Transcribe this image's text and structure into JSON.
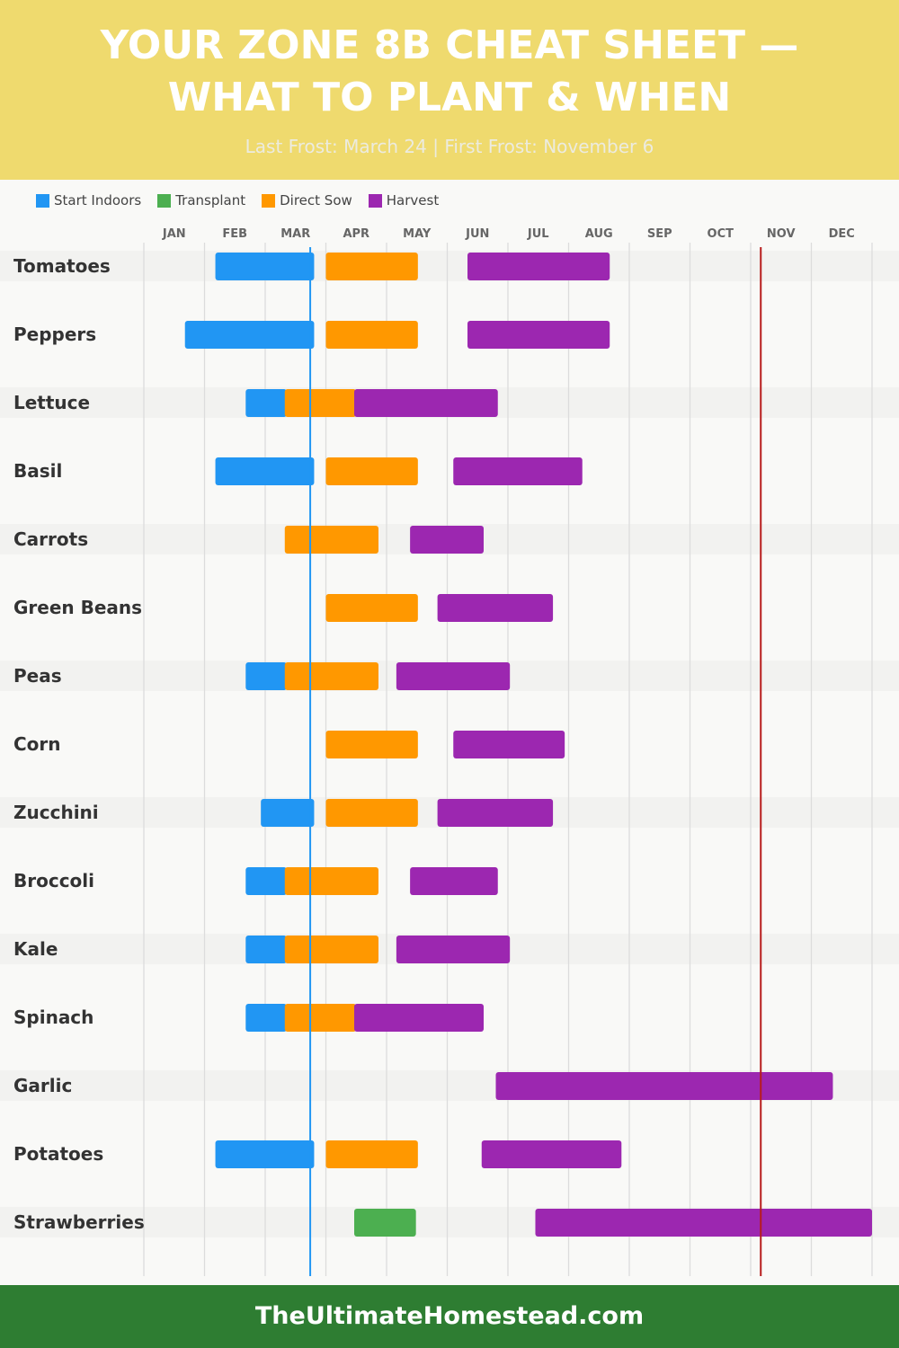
{
  "header": {
    "title_line1": "YOUR ZONE 8B CHEAT SHEET —",
    "title_line2": "WHAT TO PLANT & WHEN",
    "subtitle": "Last Frost: March 24 | First Frost: November 6"
  },
  "footer": {
    "text": "TheUltimateHomestead.com"
  },
  "chart_data": {
    "type": "gantt",
    "legend": [
      {
        "name": "Start Indoors",
        "color": "#2196f3"
      },
      {
        "name": "Transplant",
        "color": "#4caf50"
      },
      {
        "name": "Direct Sow",
        "color": "#ff9800"
      },
      {
        "name": "Harvest",
        "color": "#9c27b0"
      }
    ],
    "months": [
      "JAN",
      "FEB",
      "MAR",
      "APR",
      "MAY",
      "JUN",
      "JUL",
      "AUG",
      "SEP",
      "OCT",
      "NOV",
      "DEC"
    ],
    "frost_lines": [
      {
        "label": "Last Frost",
        "date": "03-24",
        "color": "#2196f3"
      },
      {
        "label": "First Frost",
        "date": "11-06",
        "color": "#b71c1c"
      }
    ],
    "crops": [
      {
        "name": "Tomatoes",
        "tasks": [
          [
            "Start Indoors",
            "02-06",
            "03-25"
          ],
          [
            "Direct Sow",
            "04-01",
            "05-16"
          ],
          [
            "Harvest",
            "06-11",
            "08-21"
          ]
        ]
      },
      {
        "name": "Peppers",
        "tasks": [
          [
            "Start Indoors",
            "01-22",
            "03-25"
          ],
          [
            "Direct Sow",
            "04-01",
            "05-16"
          ],
          [
            "Harvest",
            "06-11",
            "08-21"
          ]
        ]
      },
      {
        "name": "Lettuce",
        "tasks": [
          [
            "Start Indoors",
            "02-20",
            "03-11"
          ],
          [
            "Direct Sow",
            "03-11",
            "04-15"
          ],
          [
            "Harvest",
            "04-15",
            "06-25"
          ]
        ]
      },
      {
        "name": "Basil",
        "tasks": [
          [
            "Start Indoors",
            "02-06",
            "03-25"
          ],
          [
            "Direct Sow",
            "04-01",
            "05-16"
          ],
          [
            "Harvest",
            "06-04",
            "08-07"
          ]
        ]
      },
      {
        "name": "Carrots",
        "tasks": [
          [
            "Direct Sow",
            "03-11",
            "04-26"
          ],
          [
            "Harvest",
            "05-13",
            "06-18"
          ]
        ]
      },
      {
        "name": "Green Beans",
        "tasks": [
          [
            "Direct Sow",
            "04-01",
            "05-16"
          ],
          [
            "Harvest",
            "05-27",
            "07-23"
          ]
        ]
      },
      {
        "name": "Peas",
        "tasks": [
          [
            "Start Indoors",
            "02-20",
            "03-11"
          ],
          [
            "Direct Sow",
            "03-11",
            "04-26"
          ],
          [
            "Harvest",
            "05-06",
            "07-01"
          ]
        ]
      },
      {
        "name": "Corn",
        "tasks": [
          [
            "Direct Sow",
            "04-01",
            "05-16"
          ],
          [
            "Harvest",
            "06-04",
            "07-29"
          ]
        ]
      },
      {
        "name": "Zucchini",
        "tasks": [
          [
            "Start Indoors",
            "02-27",
            "03-25"
          ],
          [
            "Direct Sow",
            "04-01",
            "05-16"
          ],
          [
            "Harvest",
            "05-27",
            "07-23"
          ]
        ]
      },
      {
        "name": "Broccoli",
        "tasks": [
          [
            "Start Indoors",
            "02-20",
            "03-11"
          ],
          [
            "Direct Sow",
            "03-11",
            "04-26"
          ],
          [
            "Harvest",
            "05-13",
            "06-25"
          ]
        ]
      },
      {
        "name": "Kale",
        "tasks": [
          [
            "Start Indoors",
            "02-20",
            "03-11"
          ],
          [
            "Direct Sow",
            "03-11",
            "04-26"
          ],
          [
            "Harvest",
            "05-06",
            "07-01"
          ]
        ]
      },
      {
        "name": "Spinach",
        "tasks": [
          [
            "Start Indoors",
            "02-20",
            "03-11"
          ],
          [
            "Direct Sow",
            "03-11",
            "04-15"
          ],
          [
            "Harvest",
            "04-15",
            "06-18"
          ]
        ]
      },
      {
        "name": "Garlic",
        "tasks": [
          [
            "Harvest",
            "06-25",
            "12-11"
          ]
        ]
      },
      {
        "name": "Potatoes",
        "tasks": [
          [
            "Start Indoors",
            "02-06",
            "03-25"
          ],
          [
            "Direct Sow",
            "04-01",
            "05-16"
          ],
          [
            "Harvest",
            "06-18",
            "08-27"
          ]
        ]
      },
      {
        "name": "Strawberries",
        "tasks": [
          [
            "Transplant",
            "04-15",
            "05-15"
          ],
          [
            "Harvest",
            "07-15",
            "12-31"
          ]
        ]
      }
    ]
  }
}
